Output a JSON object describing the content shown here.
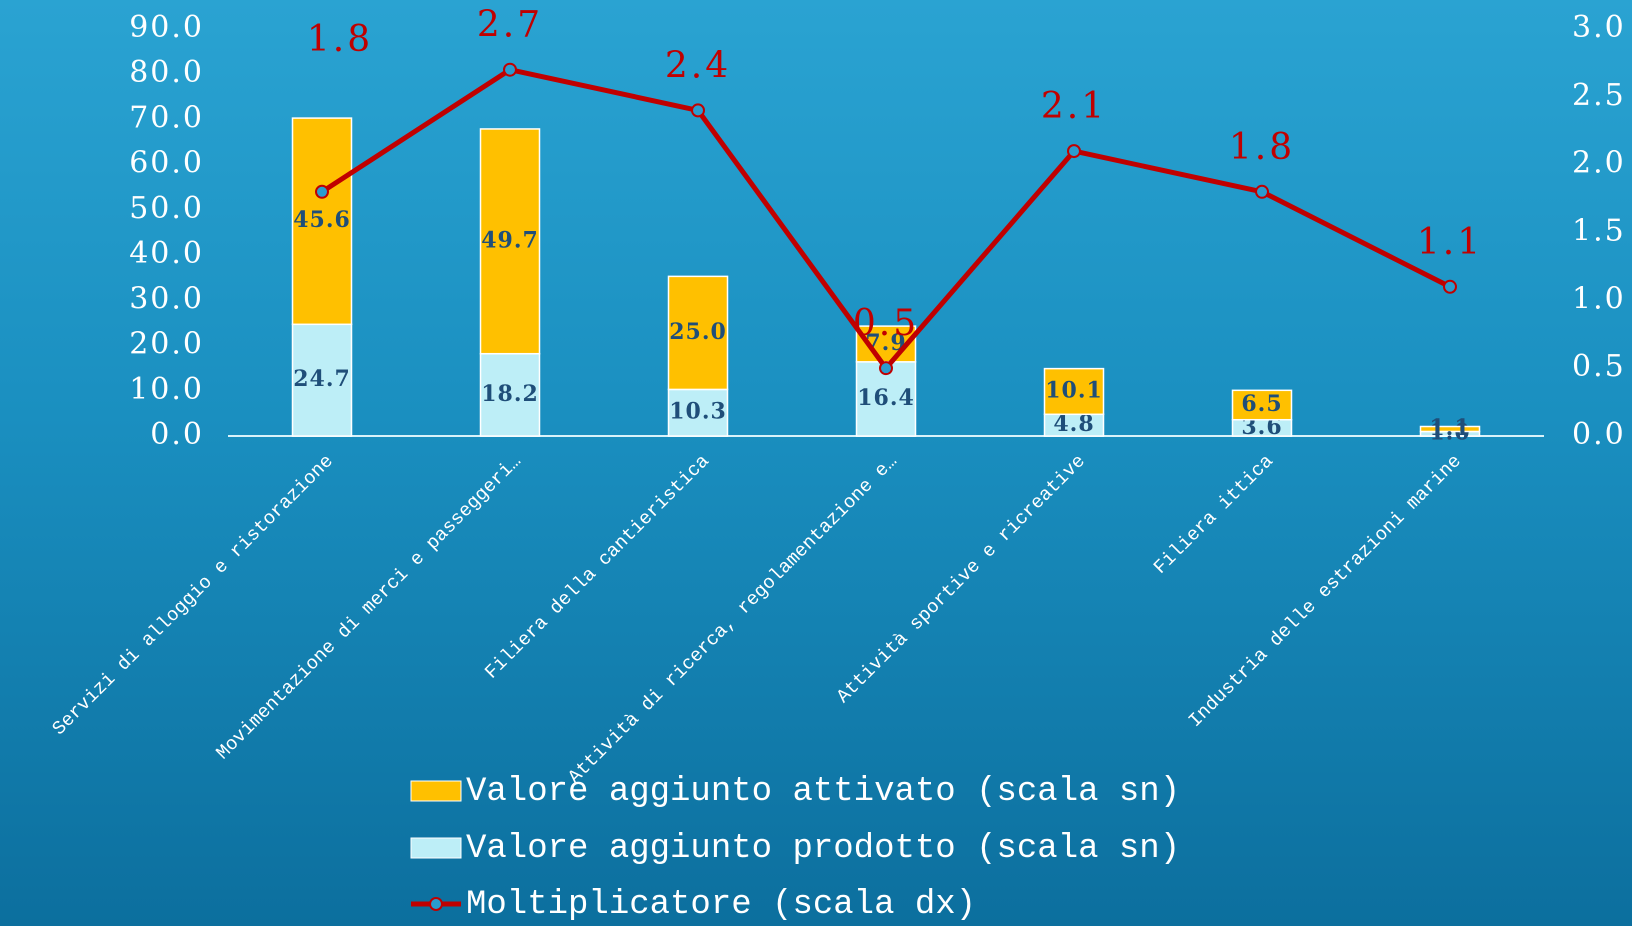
{
  "chart_data": {
    "type": "bar_line",
    "categories": [
      "Servizi di alloggio e ristorazione",
      "Movimentazione di merci e passeggeri…",
      "Filiera della cantieristica",
      "Attività di ricerca, regolamentazione e…",
      "Attività sportive e ricreative",
      "Filiera ittica",
      "Industria delle estrazioni marine"
    ],
    "series": [
      {
        "name": "Valore aggiunto attivato (scala sn)",
        "color": "#ffc000",
        "type": "bar",
        "stack": "top",
        "values": [
          45.6,
          49.7,
          25.0,
          7.9,
          10.1,
          6.5,
          1.1
        ],
        "value_labels": [
          "45.6",
          "49.7",
          "25.0",
          "7.9",
          "10.1",
          "6.5",
          "1.1"
        ]
      },
      {
        "name": "Valore aggiunto prodotto (scala sn)",
        "color": "#bdeef7",
        "type": "bar",
        "stack": "bottom",
        "values": [
          24.7,
          18.2,
          10.3,
          16.4,
          4.8,
          3.6,
          1.0
        ],
        "value_labels": [
          "24.7",
          "18.2",
          "10.3",
          "16.4",
          "4.8",
          "3.6",
          "1.0"
        ]
      },
      {
        "name": "Moltiplicatore (scala dx)",
        "color": "#c00000",
        "type": "line",
        "axis": "y2",
        "values": [
          1.8,
          2.7,
          2.4,
          0.5,
          2.1,
          1.8,
          1.1
        ],
        "value_labels": [
          "1.8",
          "2.7",
          "2.4",
          "0.5",
          "2.1",
          "1.8",
          "1.1"
        ]
      }
    ],
    "ylim": [
      0,
      90
    ],
    "yticks": [
      {
        "value": 0,
        "label": "0.0"
      },
      {
        "value": 10,
        "label": "10.0"
      },
      {
        "value": 20,
        "label": "20.0"
      },
      {
        "value": 30,
        "label": "30.0"
      },
      {
        "value": 40,
        "label": "40.0"
      },
      {
        "value": 50,
        "label": "50.0"
      },
      {
        "value": 60,
        "label": "60.0"
      },
      {
        "value": 70,
        "label": "70.0"
      },
      {
        "value": 80,
        "label": "80.0"
      },
      {
        "value": 90,
        "label": "90.0"
      }
    ],
    "y2lim": [
      0,
      3
    ],
    "y2ticks": [
      {
        "value": 0,
        "label": "0.0"
      },
      {
        "value": 0.5,
        "label": "0.5"
      },
      {
        "value": 1,
        "label": "1.0"
      },
      {
        "value": 1.5,
        "label": "1.5"
      },
      {
        "value": 2,
        "label": "2.0"
      },
      {
        "value": 2.5,
        "label": "2.5"
      },
      {
        "value": 3,
        "label": "3.0"
      }
    ],
    "legend": "bottom"
  }
}
